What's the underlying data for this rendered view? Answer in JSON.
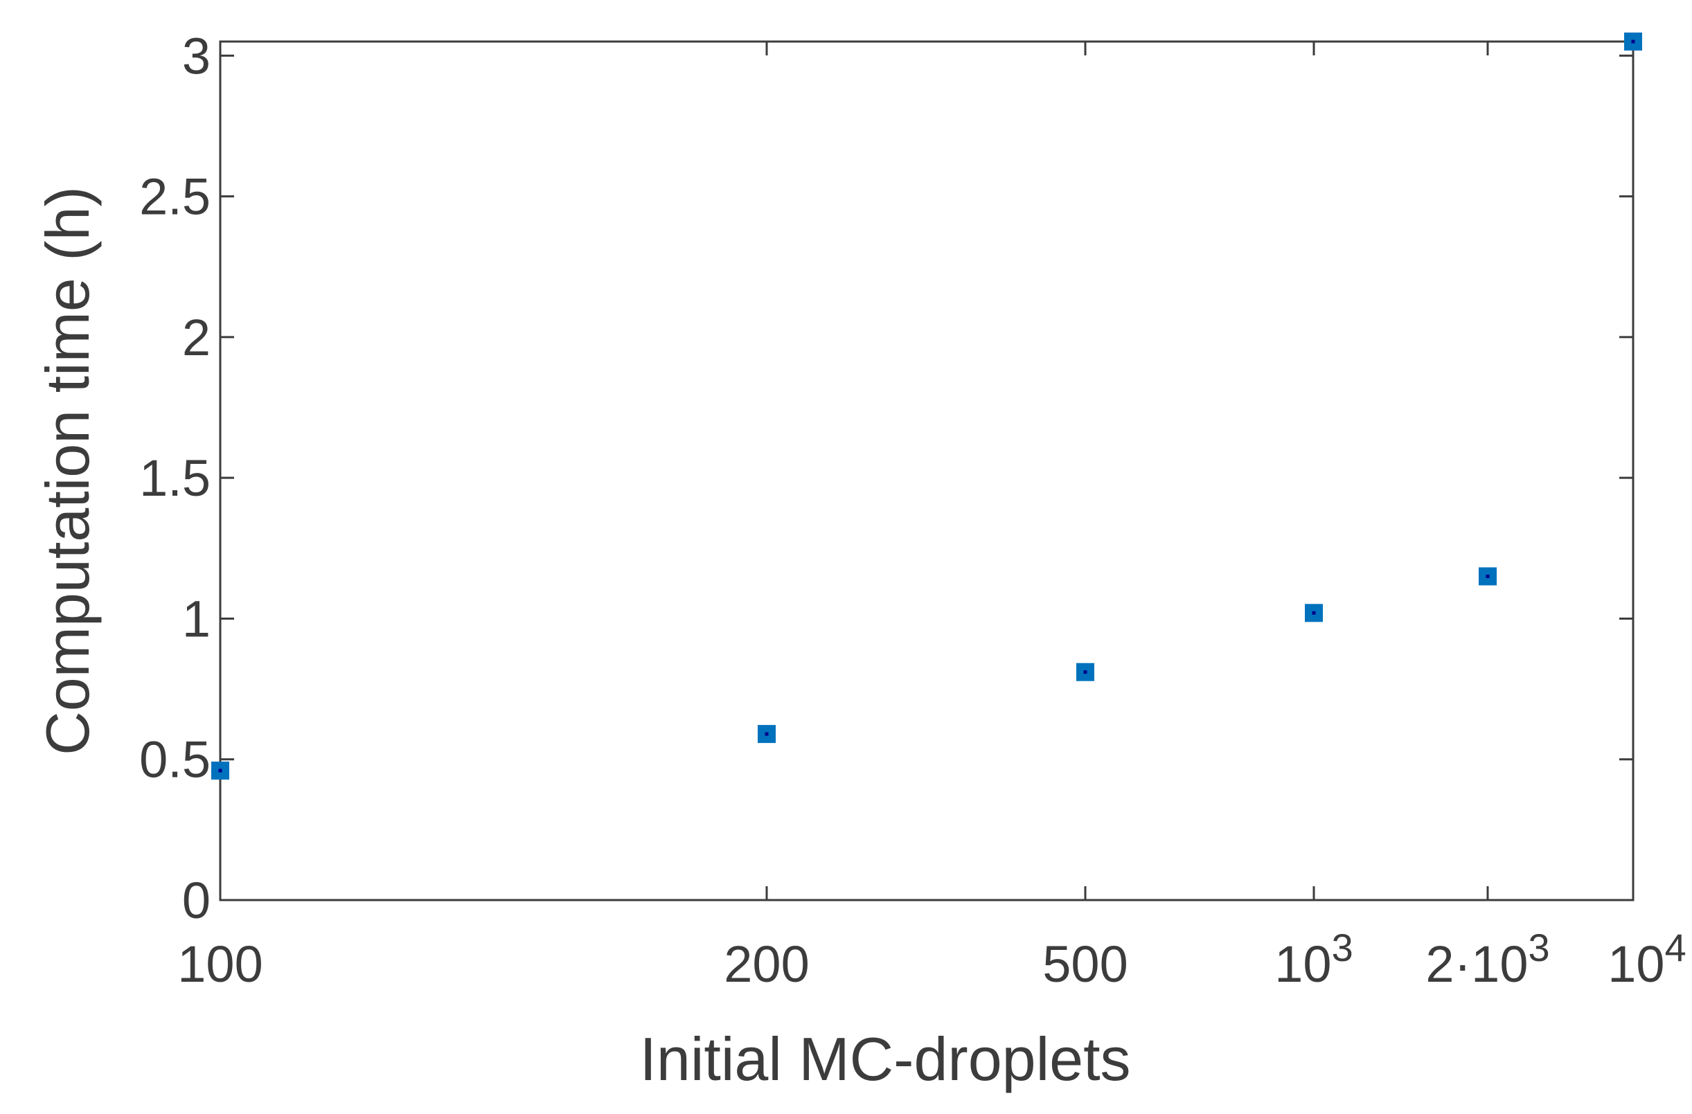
{
  "chart_data": {
    "type": "scatter",
    "xlabel": "Initial MC-droplets",
    "ylabel": "Computation time (h)",
    "ylim": [
      0,
      3.05
    ],
    "grid": false,
    "legend": "none",
    "x_categories": [
      {
        "label": "100",
        "base": "",
        "exp": ""
      },
      {
        "label": "200",
        "base": "",
        "exp": ""
      },
      {
        "label": "500",
        "base": "",
        "exp": ""
      },
      {
        "label": "10^3",
        "base": "10",
        "exp": "3"
      },
      {
        "label": "2·10^3",
        "base": "2·10",
        "exp": "3"
      },
      {
        "label": "10^4",
        "base": "10",
        "exp": "4"
      }
    ],
    "y_ticks": [
      "0",
      "0.5",
      "1",
      "1.5",
      "2",
      "2.5",
      "3"
    ],
    "y_tick_values": [
      0,
      0.5,
      1,
      1.5,
      2,
      2.5,
      3
    ],
    "series": [
      {
        "x": [
          100,
          200,
          500,
          1000,
          2000,
          10000
        ],
        "y": [
          0.46,
          0.59,
          0.81,
          1.02,
          1.15,
          3.05
        ]
      }
    ],
    "marker_color": "#0072bd",
    "marker_center_color": "#00008b",
    "axis_color": "#3c3c3c"
  }
}
